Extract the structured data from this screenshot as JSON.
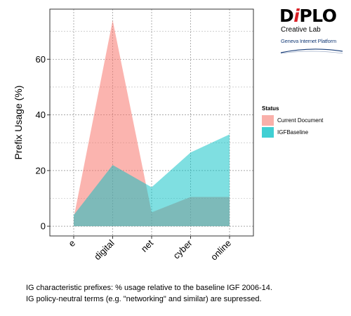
{
  "logo": {
    "word_start": "D",
    "word_accent": "i",
    "word_end": "PLO",
    "line1": "Creative Lab",
    "line2": "Geneva Internet Platform"
  },
  "chart_data": {
    "type": "area",
    "categories": [
      "e",
      "digital",
      "net",
      "cyber",
      "online"
    ],
    "xlabel": "",
    "ylabel": "Prefix Usage (%)",
    "ylim": [
      -3.5,
      78
    ],
    "yticks": [
      0,
      20,
      40,
      60
    ],
    "grid": true,
    "legend": {
      "title": "Status",
      "placement": "right"
    },
    "series": [
      {
        "name": "Current Document",
        "color": "#F8766D",
        "opacity": 0.55,
        "values": [
          3,
          74,
          5,
          10.5,
          10.5
        ]
      },
      {
        "name": "IGFBaseline",
        "color": "#00BFC4",
        "opacity": 0.5,
        "values": [
          4,
          22,
          14,
          26.5,
          33
        ]
      }
    ]
  },
  "caption": {
    "line1": "IG characteristic prefixes: % usage relative to the baseline IGF 2006-14.",
    "line2": "IG policy-neutral terms (e.g. \"networking\" and similar) are supressed."
  }
}
